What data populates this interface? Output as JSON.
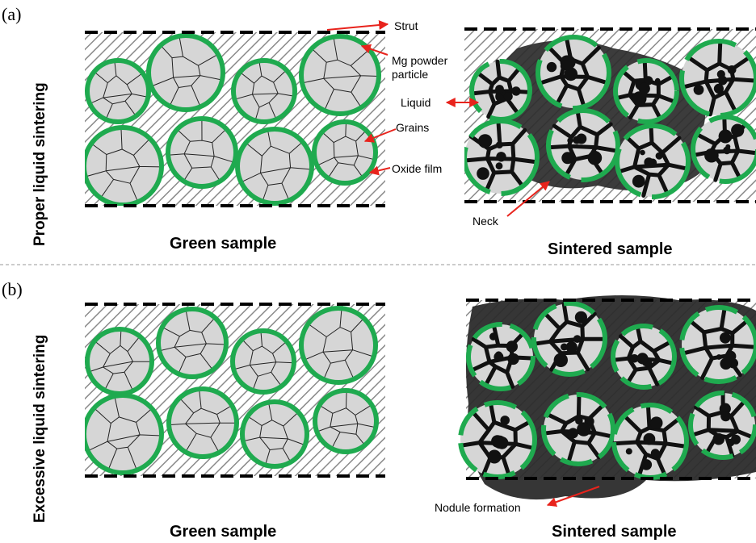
{
  "panels": {
    "a": {
      "letter": "(a)",
      "row_title": "Proper liquid sintering",
      "green_caption": "Green sample",
      "sintered_caption": "Sintered sample"
    },
    "b": {
      "letter": "(b)",
      "row_title": "Excessive liquid sintering",
      "green_caption": "Green sample",
      "sintered_caption": "Sintered sample"
    }
  },
  "callouts": {
    "strut": "Strut",
    "mg_particle_line1": "Mg powder",
    "mg_particle_line2": "particle",
    "grains": "Grains",
    "oxide_film": "Oxide film",
    "liquid": "Liquid",
    "neck": "Neck",
    "nodule": "Nodule formation"
  },
  "colors": {
    "particle_ring": "#1faa4f",
    "particle_fill": "#d6d6d6",
    "liquid": "#2b2b2b",
    "arrow": "#e8231c",
    "hatch": "#8a8a8a",
    "divider": "#9a9a9a"
  }
}
